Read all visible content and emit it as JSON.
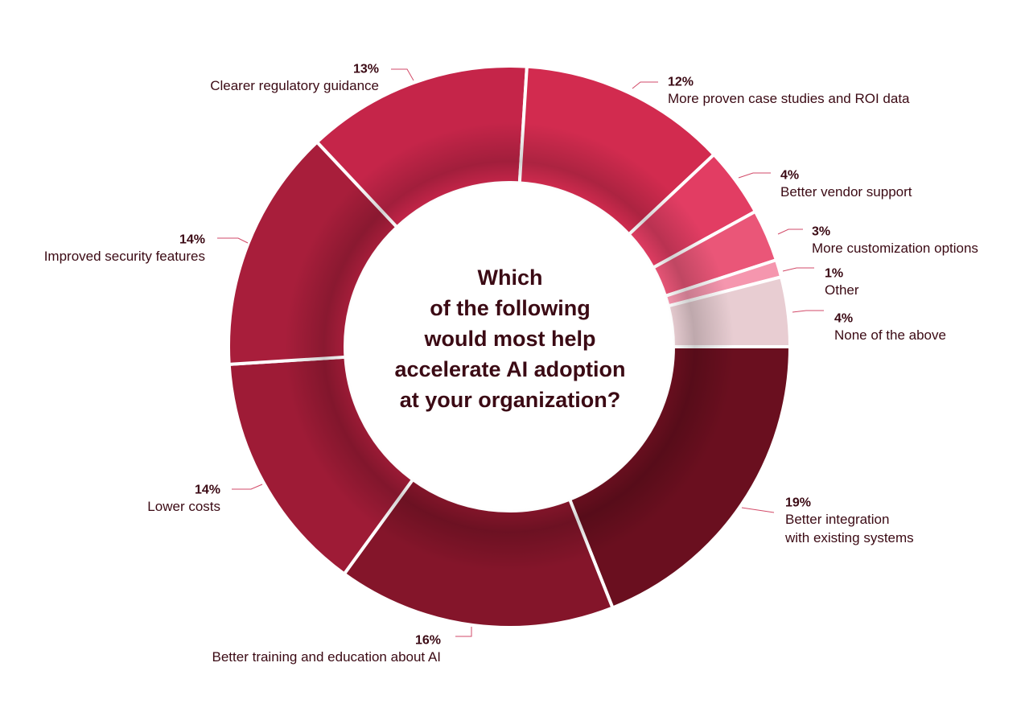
{
  "chart_data": {
    "type": "pie",
    "variant": "donut",
    "title": [
      "Which",
      "of the following",
      "would most help",
      "accelerate AI adoption",
      "at your organization?"
    ],
    "unit": "%",
    "slices": [
      {
        "label": "Better integration with existing systems",
        "label_lines": [
          "Better integration",
          "with existing systems"
        ],
        "value": 19,
        "display": "19%",
        "color": "#6a0f1f"
      },
      {
        "label": "Better training and education about AI",
        "label_lines": [
          "Better training and education about AI"
        ],
        "value": 16,
        "display": "16%",
        "color": "#84152a"
      },
      {
        "label": "Lower costs",
        "label_lines": [
          "Lower costs"
        ],
        "value": 14,
        "display": "14%",
        "color": "#9e1b36"
      },
      {
        "label": "Improved security features",
        "label_lines": [
          "Improved security features"
        ],
        "value": 14,
        "display": "14%",
        "color": "#a81e3b"
      },
      {
        "label": "Clearer regulatory guidance",
        "label_lines": [
          "Clearer regulatory guidance"
        ],
        "value": 13,
        "display": "13%",
        "color": "#c52549"
      },
      {
        "label": "More proven case studies and ROI data",
        "label_lines": [
          "More proven case studies and ROI data"
        ],
        "value": 12,
        "display": "12%",
        "color": "#d22b4f"
      },
      {
        "label": "Better vendor support",
        "label_lines": [
          "Better vendor support"
        ],
        "value": 4,
        "display": "4%",
        "color": "#e23d63"
      },
      {
        "label": "More customization options",
        "label_lines": [
          "More customization options"
        ],
        "value": 3,
        "display": "3%",
        "color": "#ea5678"
      },
      {
        "label": "Other",
        "label_lines": [
          "Other"
        ],
        "value": 1,
        "display": "1%",
        "color": "#f596ae"
      },
      {
        "label": "None of the above",
        "label_lines": [
          "None of the above"
        ],
        "value": 4,
        "display": "4%",
        "color": "#e8cdd2"
      }
    ],
    "leader_color": "#d24a68",
    "divider_color": "#ffffff"
  }
}
